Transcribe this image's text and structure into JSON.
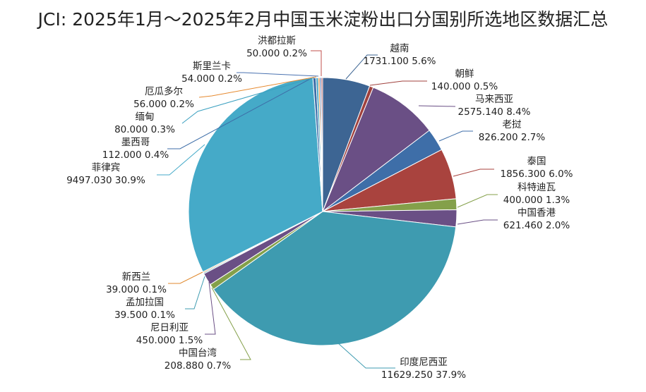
{
  "chart_data": {
    "type": "pie",
    "title": "JCI: 2025年1月～2025年2月中国玉米淀粉出口分国别所选地区数据汇总",
    "start": "top",
    "direction": "clockwise",
    "slices": [
      {
        "name": "越南",
        "value": 1731.1,
        "value_label": "1731.100",
        "percent": "5.6%",
        "color": "#3d6593"
      },
      {
        "name": "朝鲜",
        "value": 140.0,
        "value_label": "140.000",
        "percent": "0.5%",
        "color": "#a0413d"
      },
      {
        "name": "马来西亚",
        "value": 2575.14,
        "value_label": "2575.140",
        "percent": "8.4%",
        "color": "#6a4f85"
      },
      {
        "name": "老挝",
        "value": 826.2,
        "value_label": "826.200",
        "percent": "2.7%",
        "color": "#3e6ea8"
      },
      {
        "name": "泰国",
        "value": 1856.3,
        "value_label": "1856.300",
        "percent": "6.0%",
        "color": "#a9433e"
      },
      {
        "name": "科特迪瓦",
        "value": 400.0,
        "value_label": "400.000",
        "percent": "1.3%",
        "color": "#84a04a"
      },
      {
        "name": "中国香港",
        "value": 621.46,
        "value_label": "621.460",
        "percent": "2.0%",
        "color": "#6a4f85"
      },
      {
        "name": "印度尼西亚",
        "value": 11629.25,
        "value_label": "11629.250",
        "percent": "37.9%",
        "color": "#3e9bb0"
      },
      {
        "name": "中国台湾",
        "value": 208.88,
        "value_label": "208.880",
        "percent": "0.7%",
        "color": "#84a04a"
      },
      {
        "name": "尼日利亚",
        "value": 450.0,
        "value_label": "450.000",
        "percent": "1.5%",
        "color": "#6a4f85"
      },
      {
        "name": "孟加拉国",
        "value": 39.5,
        "value_label": "39.500",
        "percent": "0.1%",
        "color": "#3e9bb0"
      },
      {
        "name": "新西兰",
        "value": 39.0,
        "value_label": "39.000",
        "percent": "0.1%",
        "color": "#e08a2f"
      },
      {
        "name": "菲律宾",
        "value": 9497.03,
        "value_label": "9497.030",
        "percent": "30.9%",
        "color": "#45aac8"
      },
      {
        "name": "墨西哥",
        "value": 112.0,
        "value_label": "112.000",
        "percent": "0.4%",
        "color": "#3e6ea8"
      },
      {
        "name": "缅甸",
        "value": 80.0,
        "value_label": "80.000",
        "percent": "0.3%",
        "color": "#3ba0c0"
      },
      {
        "name": "厄瓜多尔",
        "value": 56.0,
        "value_label": "56.000",
        "percent": "0.2%",
        "color": "#e68a30"
      },
      {
        "name": "斯里兰卡",
        "value": 54.0,
        "value_label": "54.000",
        "percent": "0.2%",
        "color": "#4a72b0"
      },
      {
        "name": "洪都拉斯",
        "value": 50.0,
        "value_label": "50.000",
        "percent": "0.2%",
        "color": "#c0504d"
      }
    ]
  }
}
